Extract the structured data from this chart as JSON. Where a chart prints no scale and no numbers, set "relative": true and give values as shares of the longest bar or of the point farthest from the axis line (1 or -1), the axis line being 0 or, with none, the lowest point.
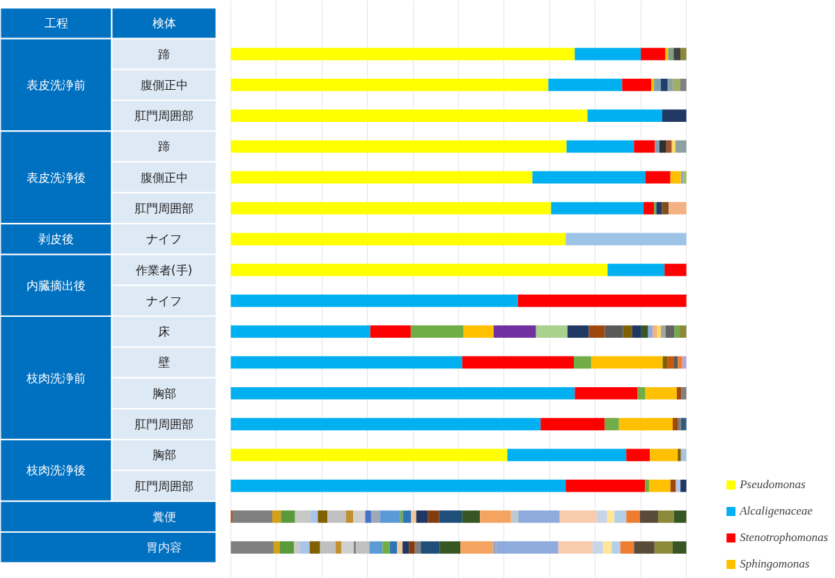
{
  "chart_data": {
    "type": "bar",
    "orientation": "horizontal",
    "stacked": true,
    "relative": true,
    "grid": "x",
    "legend": "bottom right",
    "annotations": [
      "工程",
      "検体",
      "表皮洗浄前",
      "表皮洗浄後",
      "剥皮後",
      "内臓摘出後",
      "枝肉洗浄前",
      "枝肉洗浄後"
    ],
    "categories": [
      "蹄",
      "腹側正中",
      "肛門周囲部",
      "蹄",
      "腹側正中",
      "肛門周囲部",
      "ナイフ",
      "作業者(手)",
      "ナイフ",
      "床",
      "壁",
      "胸部",
      "肛門周囲部",
      "胸部",
      "肛門周囲部",
      "糞便",
      "胃内容"
    ],
    "series": [
      {
        "name": "Pseudomonas",
        "color": "#ffff00",
        "values": [
          0.755,
          0.697,
          0.783,
          0.737,
          0.662,
          0.703,
          0.735,
          0.827,
          null,
          null,
          null,
          null,
          null,
          0.607,
          null,
          null,
          null
        ]
      },
      {
        "name": "Alcaligenaceae",
        "color": "#00b0f0",
        "values": [
          0.145,
          0.162,
          0.164,
          0.148,
          0.248,
          0.203,
          null,
          0.125,
          0.63,
          0.306,
          0.508,
          0.755,
          0.68,
          0.261,
          0.735,
          null,
          null
        ]
      },
      {
        "name": "Stenotrophomonas",
        "color": "#ff0000",
        "values": [
          0.054,
          0.064,
          null,
          0.046,
          0.055,
          0.023,
          null,
          0.048,
          0.37,
          0.089,
          0.245,
          0.138,
          0.141,
          0.052,
          0.174,
          null,
          null
        ]
      },
      {
        "color": "#70ad47",
        "values": [
          null,
          null,
          null,
          null,
          null,
          null,
          null,
          null,
          null,
          0.116,
          0.038,
          0.017,
          0.031,
          null,
          0.009,
          null,
          null
        ]
      },
      {
        "name": "Sphingomonas",
        "color": "#ffc000",
        "values": [
          0.006,
          0.006,
          null,
          null,
          0.023,
          null,
          null,
          null,
          null,
          0.066,
          0.157,
          0.069,
          0.118,
          0.061,
          0.047,
          null,
          null
        ]
      },
      {
        "values": [
          0.012,
          0.015,
          0.053,
          0.01,
          0.006,
          0.005,
          0.265,
          null,
          null,
          0.093,
          0.01,
          0.01,
          0.012,
          0.007,
          0.012,
          0.005,
          0.094
        ],
        "colors": [
          "#7f9f7f",
          "#7f9faf",
          "#1f3864",
          "#7fa0b0",
          "#8fa8c0",
          "#70ad47",
          "#9dc3e6",
          null,
          null,
          "#7030a0",
          "#7f6000",
          "#9e480e",
          "#9e480e",
          "#7f6000",
          "#9e480e",
          "#a0522d",
          "#808080"
        ]
      },
      {
        "values": [
          0.015,
          0.015,
          null,
          0.015,
          0.006,
          0.012,
          null,
          null,
          null,
          0.069,
          0.015,
          0.011,
          0.006,
          0.012,
          0.01,
          0.086,
          0.013
        ],
        "colors": [
          "#404040",
          "#1f3f6f",
          null,
          "#303030",
          "#9fc060",
          "#1f3864",
          null,
          null,
          null,
          "#a9d18e",
          "#c55a11",
          "#7f7f7f",
          "#7f7f7f",
          "#a9c4e0",
          "#b4c7e7",
          "#808080",
          "#d4a017"
        ]
      },
      {
        "values": [
          0.013,
          0.012,
          null,
          0.012,
          null,
          0.015,
          null,
          null,
          null,
          0.047,
          0.008,
          null,
          0.012,
          null,
          0.013,
          0.019,
          0.032
        ],
        "colors": [
          "#8a8a3a",
          "#8fa0a0",
          null,
          "#a0522d",
          null,
          "#7f4f1f",
          null,
          null,
          null,
          "#1f3864",
          "#595959",
          null,
          "#2e5d7e",
          null,
          "#1f3864",
          "#d4a017",
          "#5b9a3a"
        ]
      },
      {
        "values": [
          null,
          0.015,
          null,
          0.008,
          null,
          0.039,
          null,
          null,
          null,
          0.035,
          0.01,
          null,
          null,
          null,
          null,
          0.031,
          0.013
        ],
        "colors": [
          null,
          "#a0b060",
          null,
          "#ffd966",
          null,
          "#f4b183",
          null,
          null,
          null,
          "#9e480e",
          "#ed7d31",
          null,
          null,
          null,
          null,
          "#5b9a3a",
          "#c8c8c8"
        ]
      },
      {
        "values": [
          null,
          0.014,
          null,
          0.024,
          null,
          null,
          null,
          null,
          null,
          0.04,
          0.009,
          null,
          null,
          null,
          null,
          0.034,
          0.021
        ],
        "colors": [
          null,
          "#808080",
          null,
          "#8fa0a0",
          null,
          null,
          null,
          null,
          null,
          "#595959",
          "#b4a7d6",
          null,
          null,
          null,
          null,
          "#c8c8c8",
          "#a9c4e8"
        ]
      },
      {
        "values": [
          null,
          null,
          null,
          null,
          null,
          null,
          null,
          null,
          null,
          0.02,
          null,
          null,
          null,
          null,
          null,
          0.016,
          0.023
        ],
        "colors": [
          null,
          null,
          null,
          null,
          null,
          null,
          null,
          null,
          null,
          "#7f6000",
          null,
          null,
          null,
          null,
          null,
          "#a9c4e8",
          "#806000"
        ]
      },
      {
        "values": [
          null,
          null,
          null,
          null,
          null,
          null,
          null,
          null,
          null,
          0.02,
          null,
          null,
          null,
          null,
          null,
          0.021,
          0.034
        ],
        "colors": [
          null,
          null,
          null,
          null,
          null,
          null,
          null,
          null,
          null,
          "#1f3864",
          null,
          null,
          null,
          null,
          null,
          "#806000",
          "#c0c0c0"
        ]
      },
      {
        "values": [
          null,
          null,
          null,
          null,
          null,
          null,
          null,
          null,
          null,
          0.015,
          null,
          null,
          null,
          null,
          null,
          0.041,
          0.013
        ],
        "colors": [
          null,
          null,
          null,
          null,
          null,
          null,
          null,
          null,
          null,
          "#375623",
          null,
          null,
          null,
          null,
          null,
          "#c0c0c0",
          "#c09030"
        ]
      },
      {
        "values": [
          null,
          null,
          null,
          null,
          null,
          null,
          null,
          null,
          null,
          0.01,
          null,
          null,
          null,
          null,
          null,
          0.016,
          0.027
        ],
        "colors": [
          null,
          null,
          null,
          null,
          null,
          null,
          null,
          null,
          null,
          "#8faadc",
          null,
          null,
          null,
          null,
          null,
          "#c09030",
          "#d0d0d0"
        ]
      },
      {
        "values": [
          null,
          null,
          null,
          null,
          null,
          null,
          null,
          null,
          null,
          0.01,
          null,
          null,
          null,
          null,
          null,
          0.026,
          0.005
        ],
        "colors": [
          null,
          null,
          null,
          null,
          null,
          null,
          null,
          null,
          null,
          "#f4b183",
          null,
          null,
          null,
          null,
          null,
          "#d0d0d0",
          "#808080"
        ]
      },
      {
        "values": [
          null,
          null,
          null,
          null,
          null,
          null,
          null,
          null,
          null,
          0.008,
          null,
          null,
          null,
          null,
          null,
          0.013,
          0.029
        ],
        "colors": [
          null,
          null,
          null,
          null,
          null,
          null,
          null,
          null,
          null,
          "#ffd966",
          null,
          null,
          null,
          null,
          null,
          "#4472c4",
          "#c0c0c0"
        ]
      },
      {
        "values": [
          null,
          null,
          null,
          null,
          null,
          null,
          null,
          null,
          null,
          0.01,
          null,
          null,
          null,
          null,
          null,
          0.019,
          0.029
        ],
        "colors": [
          null,
          null,
          null,
          null,
          null,
          null,
          null,
          null,
          null,
          "#a5a5a5",
          null,
          null,
          null,
          null,
          null,
          "#a0a8b8",
          "#5b9bd5"
        ]
      },
      {
        "values": [
          null,
          null,
          null,
          null,
          null,
          null,
          null,
          null,
          null,
          0.02,
          null,
          null,
          null,
          null,
          null,
          0.045,
          0.016
        ],
        "colors": [
          null,
          null,
          null,
          null,
          null,
          null,
          null,
          null,
          null,
          "#636363",
          null,
          null,
          null,
          null,
          null,
          "#5b9bd5",
          "#70ad47"
        ]
      },
      {
        "values": [
          null,
          null,
          null,
          null,
          null,
          null,
          null,
          null,
          null,
          0.01,
          null,
          null,
          null,
          null,
          null,
          0.006,
          0.016
        ],
        "colors": [
          null,
          null,
          null,
          null,
          null,
          null,
          null,
          null,
          null,
          "#70ad47",
          null,
          null,
          null,
          null,
          null,
          "#70ad47",
          "#2e75b6"
        ]
      },
      {
        "values": [
          null,
          null,
          null,
          null,
          null,
          null,
          null,
          null,
          null,
          0.016,
          null,
          null,
          null,
          null,
          null,
          0.018,
          0.012
        ],
        "colors": [
          null,
          null,
          null,
          null,
          null,
          null,
          null,
          null,
          null,
          "#8a8a3a",
          null,
          null,
          null,
          null,
          null,
          "#2e75b6",
          "#f0c8a0"
        ]
      },
      {
        "values": [
          null,
          null,
          null,
          null,
          null,
          null,
          null,
          null,
          null,
          null,
          null,
          null,
          null,
          null,
          null,
          0.011,
          0.014
        ],
        "colors": [
          null,
          null,
          null,
          null,
          null,
          null,
          null,
          null,
          null,
          null,
          null,
          null,
          null,
          null,
          null,
          "#f0c8a0",
          "#203864"
        ]
      },
      {
        "values": [
          null,
          null,
          null,
          null,
          null,
          null,
          null,
          null,
          null,
          null,
          null,
          null,
          null,
          null,
          null,
          0.026,
          0.013
        ],
        "colors": [
          null,
          null,
          null,
          null,
          null,
          null,
          null,
          null,
          null,
          null,
          null,
          null,
          null,
          null,
          null,
          "#203864",
          "#843c0c"
        ]
      },
      {
        "values": [
          null,
          null,
          null,
          null,
          null,
          null,
          null,
          null,
          null,
          null,
          null,
          null,
          null,
          null,
          null,
          0.024,
          0.013
        ],
        "colors": [
          null,
          null,
          null,
          null,
          null,
          null,
          null,
          null,
          null,
          null,
          null,
          null,
          null,
          null,
          null,
          "#843c0c",
          "#7f7f7f"
        ]
      },
      {
        "color": "#1f4e79",
        "values": [
          null,
          null,
          null,
          null,
          null,
          null,
          null,
          null,
          null,
          null,
          null,
          null,
          null,
          null,
          null,
          0.051,
          0.042
        ]
      },
      {
        "color": "#375623",
        "values": [
          null,
          null,
          null,
          null,
          null,
          null,
          null,
          null,
          null,
          null,
          null,
          null,
          null,
          null,
          null,
          0.039,
          0.045
        ]
      },
      {
        "color": "#f4a460",
        "values": [
          null,
          null,
          null,
          null,
          null,
          null,
          null,
          null,
          null,
          null,
          null,
          null,
          null,
          null,
          null,
          0.068,
          0.071
        ]
      },
      {
        "values": [
          null,
          null,
          null,
          null,
          null,
          null,
          null,
          null,
          null,
          null,
          null,
          null,
          null,
          null,
          null,
          0.016,
          0.008
        ],
        "colors": [
          null,
          null,
          null,
          null,
          null,
          null,
          null,
          null,
          null,
          null,
          null,
          null,
          null,
          null,
          null,
          "#c0c8d0",
          "#a0a8b8"
        ]
      },
      {
        "color": "#8faadc",
        "values": [
          null,
          null,
          null,
          null,
          null,
          null,
          null,
          null,
          null,
          null,
          null,
          null,
          null,
          null,
          null,
          0.091,
          0.136
        ]
      },
      {
        "color": "#f8cbad",
        "values": [
          null,
          null,
          null,
          null,
          null,
          null,
          null,
          null,
          null,
          null,
          null,
          null,
          null,
          null,
          null,
          0.081,
          0.075
        ]
      },
      {
        "color": "#c8d4e8",
        "values": [
          null,
          null,
          null,
          null,
          null,
          null,
          null,
          null,
          null,
          null,
          null,
          null,
          null,
          null,
          null,
          0.023,
          0.023
        ]
      },
      {
        "color": "#ffe699",
        "values": [
          null,
          null,
          null,
          null,
          null,
          null,
          null,
          null,
          null,
          null,
          null,
          null,
          null,
          null,
          null,
          0.016,
          0.019
        ]
      },
      {
        "color": "#b4d0e8",
        "values": [
          null,
          null,
          null,
          null,
          null,
          null,
          null,
          null,
          null,
          null,
          null,
          null,
          null,
          null,
          null,
          0.026,
          0.019
        ]
      },
      {
        "color": "#ed7d31",
        "values": [
          null,
          null,
          null,
          null,
          null,
          null,
          null,
          null,
          null,
          null,
          null,
          null,
          null,
          null,
          null,
          0.03,
          0.03
        ]
      },
      {
        "color": "#5a4a3a",
        "values": [
          null,
          null,
          null,
          null,
          null,
          null,
          null,
          null,
          null,
          null,
          null,
          null,
          null,
          null,
          null,
          0.04,
          0.045
        ]
      },
      {
        "color": "#8a8a3a",
        "values": [
          null,
          null,
          null,
          null,
          null,
          null,
          null,
          null,
          null,
          null,
          null,
          null,
          null,
          null,
          null,
          0.035,
          0.04
        ]
      },
      {
        "color": "#375623",
        "values": [
          null,
          null,
          null,
          null,
          null,
          null,
          null,
          null,
          null,
          null,
          null,
          null,
          null,
          null,
          null,
          0.027,
          0.03
        ]
      }
    ]
  }
}
